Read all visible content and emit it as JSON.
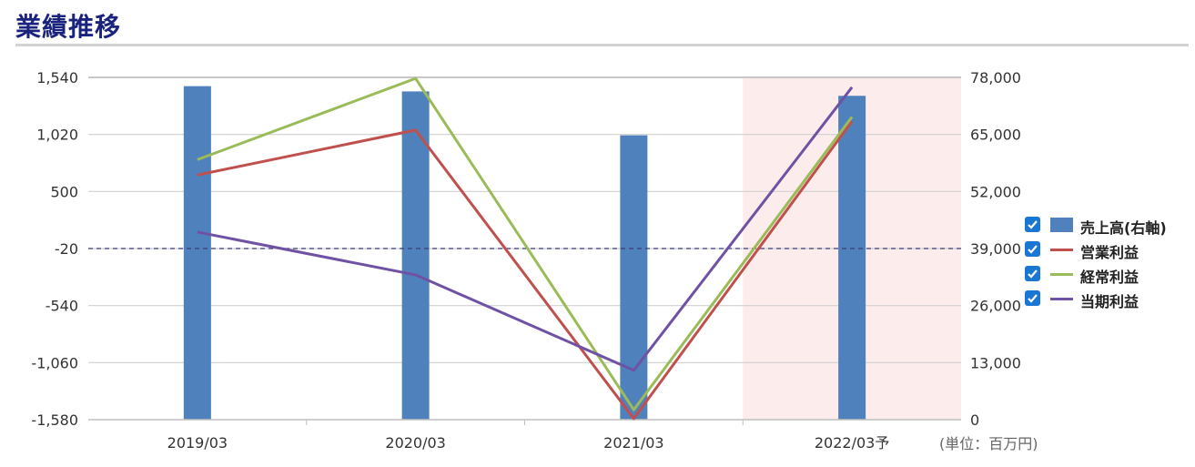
{
  "header": {
    "title": "業績推移"
  },
  "unit_label": "(単位：百万円)",
  "legend": [
    {
      "label": "売上高(右軸)",
      "kind": "bar",
      "color": "#4f81bd",
      "checked": true
    },
    {
      "label": "営業利益",
      "kind": "line",
      "color": "#c0504d",
      "checked": true
    },
    {
      "label": "経常利益",
      "kind": "line",
      "color": "#9bbb59",
      "checked": true
    },
    {
      "label": "当期利益",
      "kind": "line",
      "color": "#6f52a3",
      "checked": true
    }
  ],
  "chart_data": {
    "type": "bar",
    "categories": [
      "2019/03",
      "2020/03",
      "2021/03",
      "2022/03予"
    ],
    "forecast_category": "2022/03予",
    "forecast_band_color": "#fdecec",
    "left_axis": {
      "ticks": [
        1540,
        1020,
        500,
        -20,
        -540,
        -1060,
        -1580
      ],
      "tick_labels": [
        "1,540",
        "1,020",
        "500",
        "-20",
        "-540",
        "-1,060",
        "-1,580"
      ],
      "range": [
        -1580,
        1540
      ]
    },
    "right_axis": {
      "ticks": [
        78000,
        65000,
        52000,
        39000,
        26000,
        13000,
        0
      ],
      "tick_labels": [
        "78,000",
        "65,000",
        "52,000",
        "39,000",
        "26,000",
        "13,000",
        "0"
      ],
      "range": [
        0,
        78000
      ]
    },
    "reference_line": {
      "value": -20,
      "axis": "left",
      "style": "dashed",
      "color": "#3d3d7a"
    },
    "grid": true,
    "series": [
      {
        "name": "売上高(右軸)",
        "kind": "bar",
        "axis": "right",
        "color": "#4f81bd",
        "values": [
          76000,
          74800,
          64800,
          73800
        ]
      },
      {
        "name": "営業利益",
        "kind": "line",
        "axis": "left",
        "color": "#c0504d",
        "values": [
          650,
          1060,
          -1570,
          1140
        ]
      },
      {
        "name": "経常利益",
        "kind": "line",
        "axis": "left",
        "color": "#9bbb59",
        "values": [
          790,
          1530,
          -1490,
          1180
        ]
      },
      {
        "name": "当期利益",
        "kind": "line",
        "axis": "left",
        "color": "#6f52a3",
        "values": [
          130,
          -260,
          -1130,
          1450
        ]
      }
    ]
  }
}
